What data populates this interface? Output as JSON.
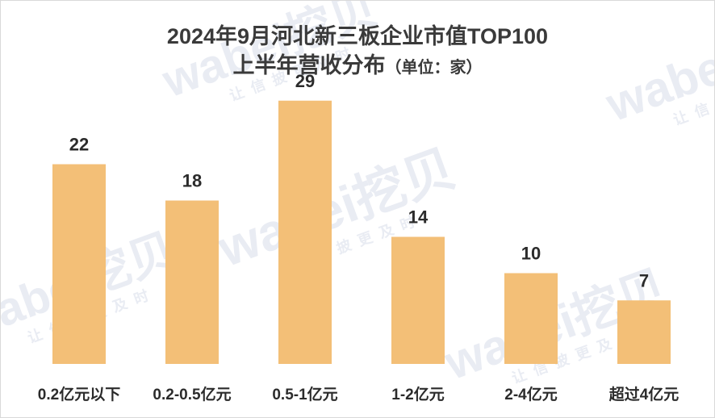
{
  "title_line1": "2024年9月河北新三板企业市值TOP100",
  "title_line2": "上半年营收分布",
  "title_unit": "（单位：家）",
  "watermark": {
    "brand": "wabei挖贝",
    "slogan": "让信披更及时"
  },
  "chart_data": {
    "type": "bar",
    "categories": [
      "0.2亿元以下",
      "0.2-0.5亿元",
      "0.5-1亿元",
      "1-2亿元",
      "2-4亿元",
      "超过4亿元"
    ],
    "values": [
      22,
      18,
      29,
      14,
      10,
      7
    ],
    "ylim": [
      0,
      32
    ],
    "grid": false,
    "legend": "none",
    "bar_color": "#f3bf77",
    "xlabel": "",
    "ylabel": ""
  }
}
